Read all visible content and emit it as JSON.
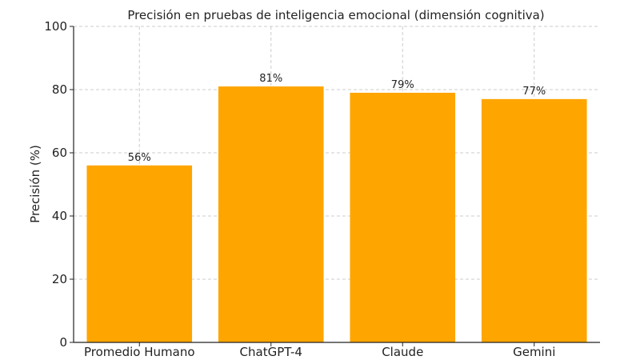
{
  "chart_data": {
    "type": "bar",
    "title": "Precisión en pruebas de inteligencia emocional (dimensión cognitiva)",
    "xlabel": "",
    "ylabel": "Precisión (%)",
    "categories": [
      "Promedio Humano",
      "ChatGPT-4",
      "Claude",
      "Gemini"
    ],
    "values": [
      56,
      81,
      79,
      77
    ],
    "data_labels": [
      "56%",
      "81%",
      "79%",
      "77%"
    ],
    "ylim": [
      0,
      100
    ],
    "yticks": [
      0,
      20,
      40,
      60,
      80,
      100
    ],
    "grid": true,
    "bar_color": "#ffa500"
  }
}
